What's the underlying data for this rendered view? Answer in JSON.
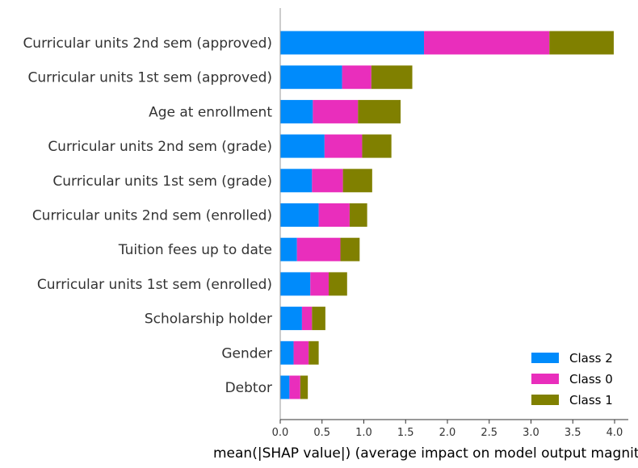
{
  "chart_data": {
    "type": "bar",
    "orientation": "horizontal",
    "stacked": true,
    "title": "",
    "xlabel": "mean(|SHAP value|) (average impact on model output magnitude)",
    "ylabel": "",
    "xlim": [
      0,
      4.15
    ],
    "xticks": [
      "0.0",
      "0.5",
      "1.0",
      "1.5",
      "2.0",
      "2.5",
      "3.0",
      "3.5",
      "4.0"
    ],
    "grid": false,
    "legend_position": "bottom-right",
    "categories": [
      "Curricular units 2nd sem (approved)",
      "Curricular units 1st sem (approved)",
      "Age at enrollment",
      "Curricular units 2nd sem (grade)",
      "Curricular units 1st sem (grade)",
      "Curricular units 2nd sem (enrolled)",
      "Tuition fees up to date",
      "Curricular units 1st sem (enrolled)",
      "Scholarship holder",
      "Gender",
      "Debtor"
    ],
    "series": [
      {
        "name": "Class 2",
        "color": "#008bfb",
        "values": [
          1.72,
          0.74,
          0.39,
          0.53,
          0.38,
          0.46,
          0.2,
          0.36,
          0.26,
          0.16,
          0.11
        ]
      },
      {
        "name": "Class 0",
        "color": "#e92ebc",
        "values": [
          1.5,
          0.35,
          0.54,
          0.45,
          0.37,
          0.37,
          0.52,
          0.22,
          0.12,
          0.18,
          0.13
        ]
      },
      {
        "name": "Class 1",
        "color": "#808000",
        "values": [
          0.77,
          0.49,
          0.51,
          0.35,
          0.35,
          0.21,
          0.23,
          0.22,
          0.16,
          0.12,
          0.09
        ]
      }
    ]
  }
}
